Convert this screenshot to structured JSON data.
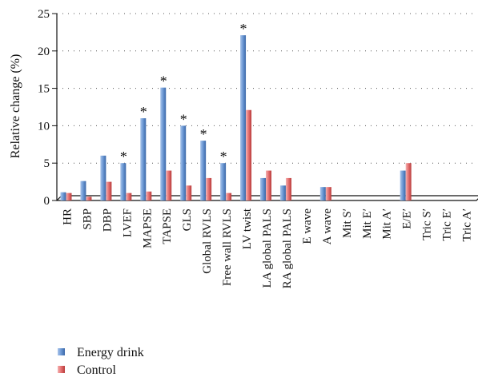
{
  "chart_data": {
    "type": "bar",
    "title": "",
    "xlabel": "",
    "ylabel": "Relative change (%)",
    "ylim": [
      0,
      25
    ],
    "yticks": [
      0,
      5,
      10,
      15,
      20,
      25
    ],
    "grid": "dotted horizontal",
    "legend_position": "bottom-left",
    "categories": [
      "HR",
      "SBP",
      "DBP",
      "LVEF",
      "MAPSE",
      "TAPSE",
      "GLS",
      "Global RVLS",
      "Free wall RVLS",
      "LV twist",
      "LA global PALS",
      "RA global PALS",
      "E wave",
      "A wave",
      "Mit S′",
      "Mit E′",
      "Mit A′",
      "E/E′",
      "Tric S′",
      "Tric E′",
      "Tric A′"
    ],
    "series": [
      {
        "name": "Energy drink",
        "color": "#4f81bd",
        "values": [
          1.1,
          2.6,
          6.0,
          5.0,
          11.0,
          15.1,
          10.0,
          8.0,
          5.0,
          22.1,
          3.0,
          2.0,
          0,
          1.8,
          0,
          0,
          0,
          4.0,
          0,
          0,
          0
        ]
      },
      {
        "name": "Control",
        "color": "#e06666",
        "values": [
          1.0,
          0.5,
          2.5,
          1.0,
          1.2,
          4.0,
          2.0,
          3.0,
          1.0,
          12.1,
          4.0,
          3.0,
          0,
          1.8,
          0,
          0,
          0,
          5.0,
          0,
          0,
          0
        ]
      }
    ],
    "significance": {
      "marker": "*",
      "categories": [
        "LVEF",
        "MAPSE",
        "TAPSE",
        "GLS",
        "Global RVLS",
        "Free wall RVLS",
        "LV twist"
      ]
    }
  }
}
